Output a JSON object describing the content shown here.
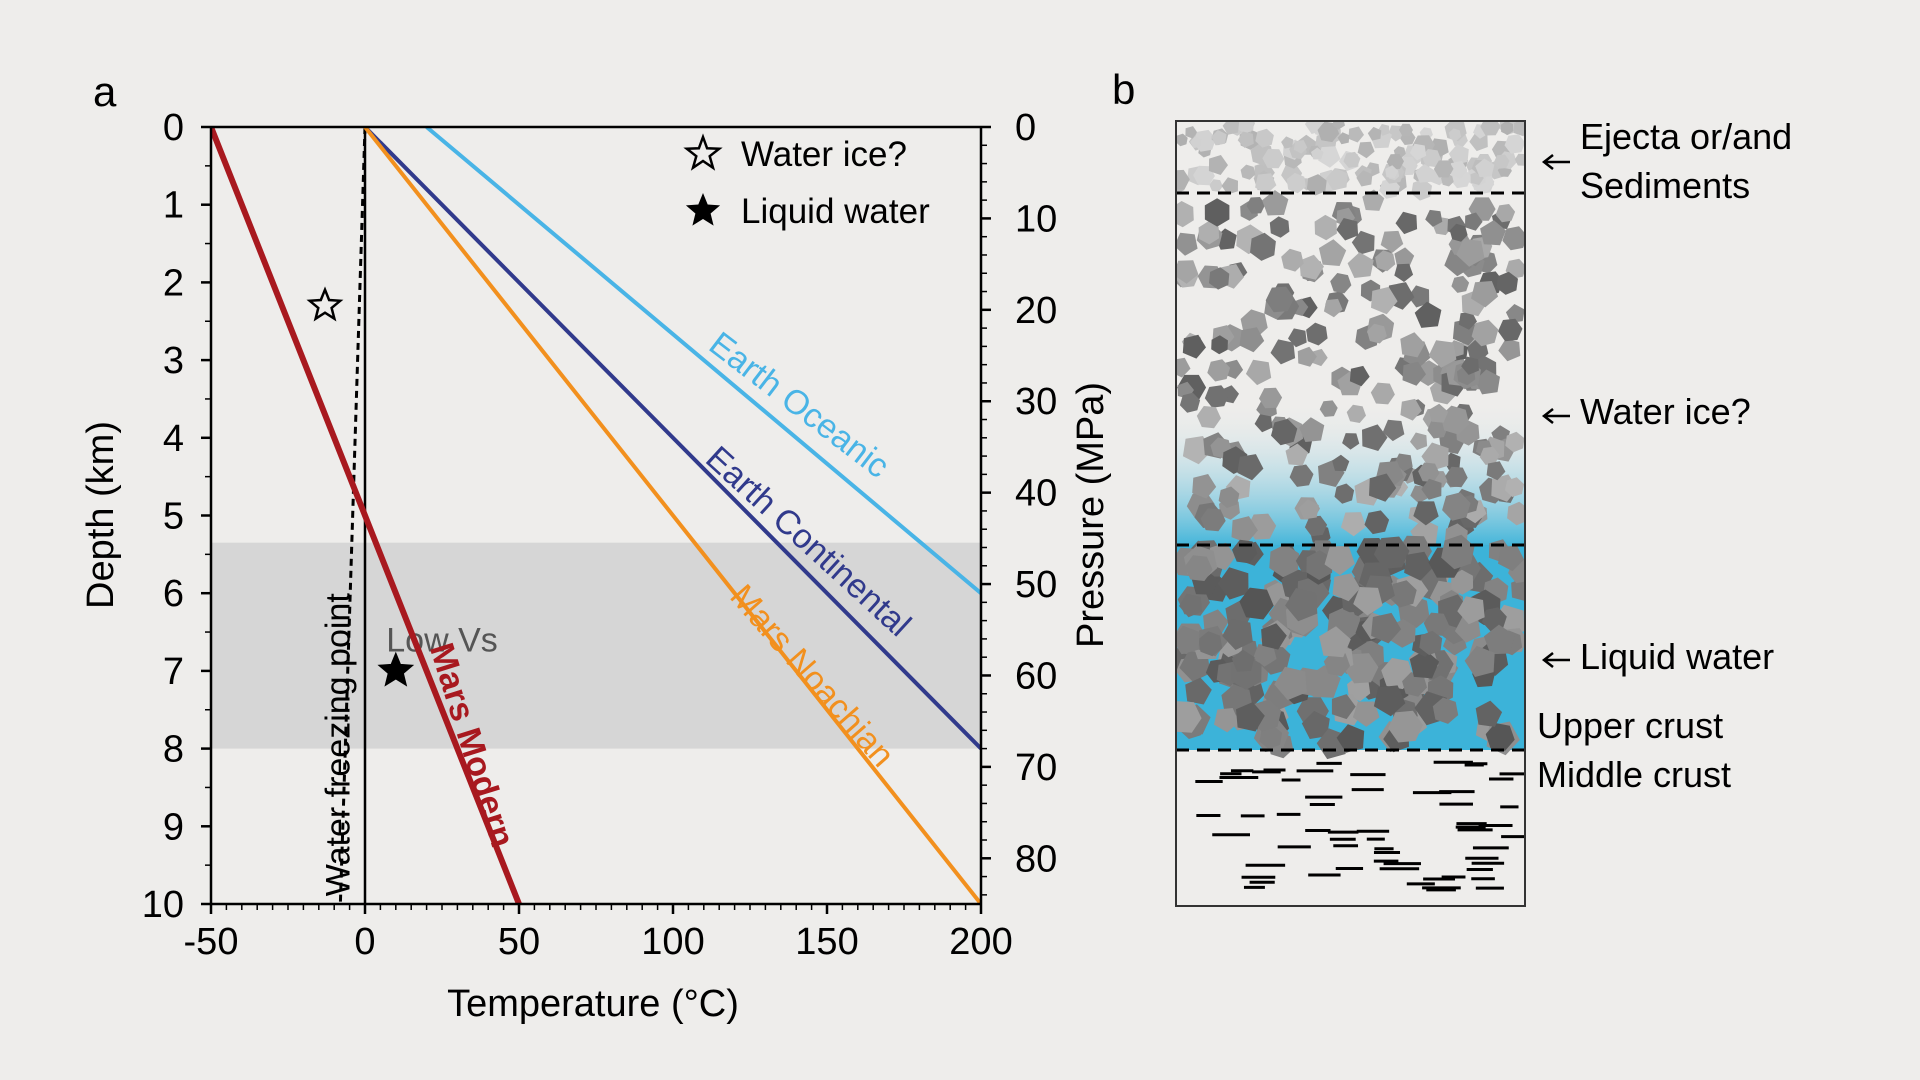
{
  "panel_a_label": "a",
  "panel_b_label": "b",
  "chart_data": {
    "type": "line",
    "xlabel": "Temperature (°C)",
    "ylabel": "Depth (km)",
    "y2label": "Pressure (MPa)",
    "xlim": [
      -50,
      200
    ],
    "ylim": [
      0,
      10
    ],
    "y2lim": [
      0,
      85
    ],
    "x_ticks": [
      -50,
      0,
      50,
      100,
      150,
      200
    ],
    "y_ticks": [
      0,
      1,
      2,
      3,
      4,
      5,
      6,
      7,
      8,
      9,
      10
    ],
    "y2_ticks": [
      0,
      10,
      20,
      30,
      40,
      50,
      60,
      70,
      80
    ],
    "shaded_region": {
      "label": "Low Vs",
      "depth_from": 5.35,
      "depth_to": 8.0,
      "color": "#d6d6d6"
    },
    "series": [
      {
        "name": "Earth Oceanic",
        "color": "#49b4e6",
        "points": [
          [
            20,
            0
          ],
          [
            200,
            6
          ]
        ]
      },
      {
        "name": "Earth Continental",
        "color": "#313a8c",
        "points": [
          [
            0,
            0
          ],
          [
            200,
            8
          ]
        ]
      },
      {
        "name": "Mars Noachian",
        "color": "#f2901e",
        "points": [
          [
            0,
            0
          ],
          [
            200,
            10
          ]
        ]
      },
      {
        "name": "Mars Modern",
        "color": "#a8191f",
        "points": [
          [
            -50,
            0
          ],
          [
            50,
            10
          ]
        ]
      }
    ],
    "freezing_line": {
      "name": "Water freezing point",
      "points": [
        [
          0,
          0
        ],
        [
          -8,
          10
        ]
      ]
    },
    "zero_line_x": 0,
    "markers": [
      {
        "label": "Water ice?",
        "type": "open-star",
        "x": -13,
        "y": 2.3
      },
      {
        "label": "Liquid water",
        "type": "filled-star",
        "x": 10,
        "y": 7.0
      }
    ],
    "legend": [
      {
        "label": "Water ice?",
        "type": "open-star"
      },
      {
        "label": "Liquid water",
        "type": "filled-star"
      }
    ]
  },
  "diagram": {
    "labels": {
      "ejecta": [
        "Ejecta or/and",
        "Sediments"
      ],
      "water_ice": "Water ice?",
      "liquid_water": "Liquid water",
      "upper_crust": "Upper crust",
      "middle_crust": "Middle crust"
    },
    "colors": {
      "water": "#3cb3d9",
      "rock_dark": "#6b6b6b",
      "rock_light": "#b4b4b4"
    }
  }
}
